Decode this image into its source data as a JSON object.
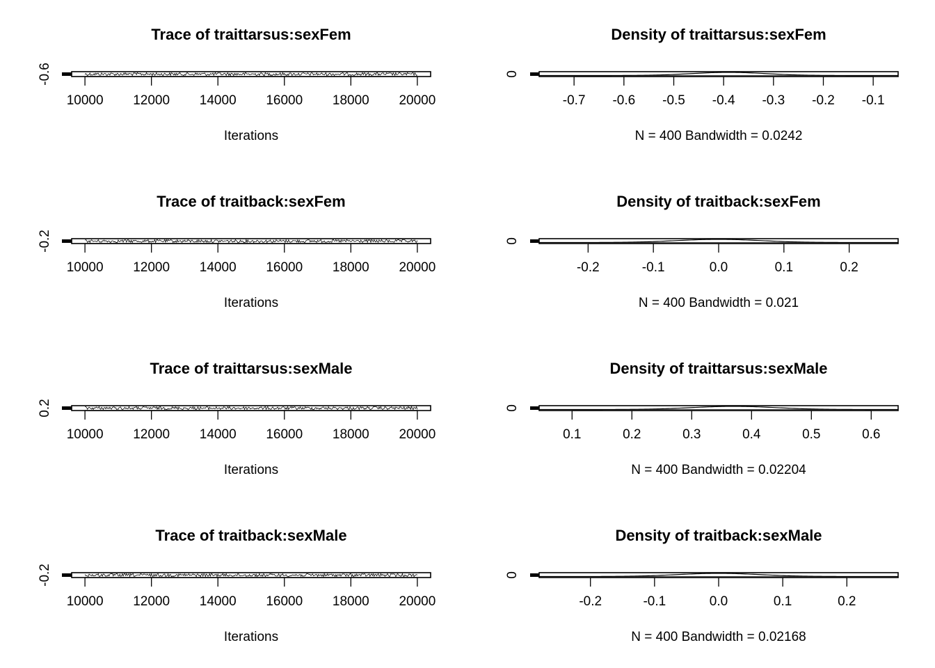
{
  "colors": {
    "background": "#ffffff",
    "ink": "#000000"
  },
  "chart_data": [
    {
      "type": "line",
      "kind": "trace",
      "title": "Trace of traittarsus:sexFem",
      "xlabel": "Iterations",
      "ylabel": "",
      "xlim": [
        9600,
        20400
      ],
      "x_ticks": [
        10000,
        12000,
        14000,
        16000,
        18000,
        20000
      ],
      "y_ticks": [
        -0.6
      ],
      "y_tick_labels": [
        "-0.6"
      ],
      "series": [
        {
          "x_start": 10000,
          "x_end": 20000,
          "center": -0.4,
          "amplitude": 0.12
        }
      ]
    },
    {
      "type": "area",
      "kind": "density",
      "title": "Density of traittarsus:sexFem",
      "xlabel": "N = 400   Bandwidth = 0.0242",
      "ylabel": "",
      "xlim": [
        -0.77,
        -0.05
      ],
      "x_ticks": [
        -0.7,
        -0.6,
        -0.5,
        -0.4,
        -0.3,
        -0.2,
        -0.1
      ],
      "x_tick_labels": [
        "-0.7",
        "-0.6",
        "-0.5",
        "-0.4",
        "-0.3",
        "-0.2",
        "-0.1"
      ],
      "y_ticks": [
        0
      ],
      "y_tick_labels": [
        "0"
      ],
      "series": [
        {
          "mean": -0.39,
          "sd": 0.075
        }
      ]
    },
    {
      "type": "line",
      "kind": "trace",
      "title": "Trace of traitback:sexFem",
      "xlabel": "Iterations",
      "ylabel": "",
      "xlim": [
        9600,
        20400
      ],
      "x_ticks": [
        10000,
        12000,
        14000,
        16000,
        18000,
        20000
      ],
      "y_ticks": [
        -0.2
      ],
      "y_tick_labels": [
        "-0.2"
      ],
      "series": [
        {
          "x_start": 10000,
          "x_end": 20000,
          "center": 0.0,
          "amplitude": 0.1
        }
      ]
    },
    {
      "type": "area",
      "kind": "density",
      "title": "Density of traitback:sexFem",
      "xlabel": "N = 400   Bandwidth = 0.021",
      "ylabel": "",
      "xlim": [
        -0.275,
        0.275
      ],
      "x_ticks": [
        -0.2,
        -0.1,
        0.0,
        0.1,
        0.2
      ],
      "x_tick_labels": [
        "-0.2",
        "-0.1",
        "0.0",
        "0.1",
        "0.2"
      ],
      "y_ticks": [
        0
      ],
      "y_tick_labels": [
        "0"
      ],
      "series": [
        {
          "mean": 0.0,
          "sd": 0.065
        }
      ]
    },
    {
      "type": "line",
      "kind": "trace",
      "title": "Trace of traittarsus:sexMale",
      "xlabel": "Iterations",
      "ylabel": "",
      "xlim": [
        9600,
        20400
      ],
      "x_ticks": [
        10000,
        12000,
        14000,
        16000,
        18000,
        20000
      ],
      "y_ticks": [
        0.2
      ],
      "y_tick_labels": [
        "0.2"
      ],
      "series": [
        {
          "x_start": 10000,
          "x_end": 20000,
          "center": 0.37,
          "amplitude": 0.1
        }
      ]
    },
    {
      "type": "area",
      "kind": "density",
      "title": "Density of traittarsus:sexMale",
      "xlabel": "N = 400   Bandwidth = 0.02204",
      "ylabel": "",
      "xlim": [
        0.045,
        0.645
      ],
      "x_ticks": [
        0.1,
        0.2,
        0.3,
        0.4,
        0.5,
        0.6
      ],
      "x_tick_labels": [
        "0.1",
        "0.2",
        "0.3",
        "0.4",
        "0.5",
        "0.6"
      ],
      "y_ticks": [
        0
      ],
      "y_tick_labels": [
        "0"
      ],
      "series": [
        {
          "mean": 0.37,
          "sd": 0.07
        }
      ]
    },
    {
      "type": "line",
      "kind": "trace",
      "title": "Trace of traitback:sexMale",
      "xlabel": "Iterations",
      "ylabel": "",
      "xlim": [
        9600,
        20400
      ],
      "x_ticks": [
        10000,
        12000,
        14000,
        16000,
        18000,
        20000
      ],
      "y_ticks": [
        -0.2
      ],
      "y_tick_labels": [
        "-0.2"
      ],
      "series": [
        {
          "x_start": 10000,
          "x_end": 20000,
          "center": 0.0,
          "amplitude": 0.1
        }
      ]
    },
    {
      "type": "area",
      "kind": "density",
      "title": "Density of traitback:sexMale",
      "xlabel": "N = 400   Bandwidth = 0.02168",
      "ylabel": "",
      "xlim": [
        -0.28,
        0.28
      ],
      "x_ticks": [
        -0.2,
        -0.1,
        0.0,
        0.1,
        0.2
      ],
      "x_tick_labels": [
        "-0.2",
        "-0.1",
        "0.0",
        "0.1",
        "0.2"
      ],
      "y_ticks": [
        0
      ],
      "y_tick_labels": [
        "0"
      ],
      "series": [
        {
          "mean": 0.0,
          "sd": 0.065
        }
      ]
    }
  ]
}
